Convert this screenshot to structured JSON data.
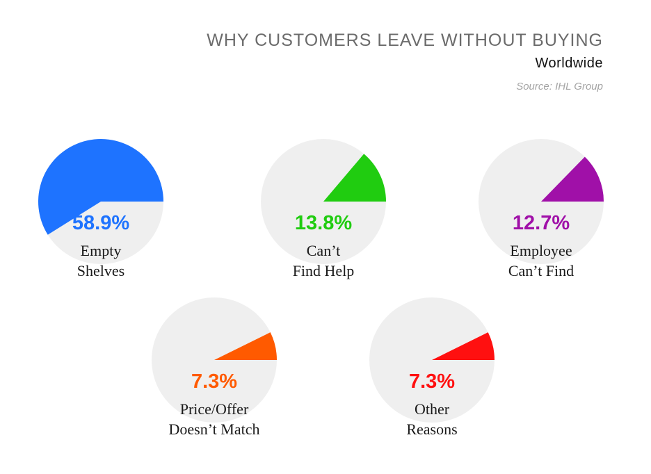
{
  "header": {
    "title": "WHY CUSTOMERS LEAVE WITHOUT BUYING",
    "subtitle": "Worldwide",
    "source": "Source: IHL Group"
  },
  "chart_data": {
    "type": "pie",
    "title": "WHY CUSTOMERS LEAVE WITHOUT BUYING",
    "subtitle": "Worldwide",
    "source": "Source: IHL Group",
    "background_color": "#efefef",
    "items": [
      {
        "label_lines": [
          "Empty",
          "Shelves"
        ],
        "value": 58.9,
        "value_label": "58.9%",
        "color": "#1e73ff"
      },
      {
        "label_lines": [
          "Can’t",
          "Find Help"
        ],
        "value": 13.8,
        "value_label": "13.8%",
        "color": "#20cc10"
      },
      {
        "label_lines": [
          "Employee",
          "Can’t Find"
        ],
        "value": 12.7,
        "value_label": "12.7%",
        "color": "#a010a8"
      },
      {
        "label_lines": [
          "Price/Offer",
          "Doesn’t Match"
        ],
        "value": 7.3,
        "value_label": "7.3%",
        "color": "#ff5a00"
      },
      {
        "label_lines": [
          "Other",
          "Reasons"
        ],
        "value": 7.3,
        "value_label": "7.3%",
        "color": "#ff1010"
      }
    ]
  }
}
